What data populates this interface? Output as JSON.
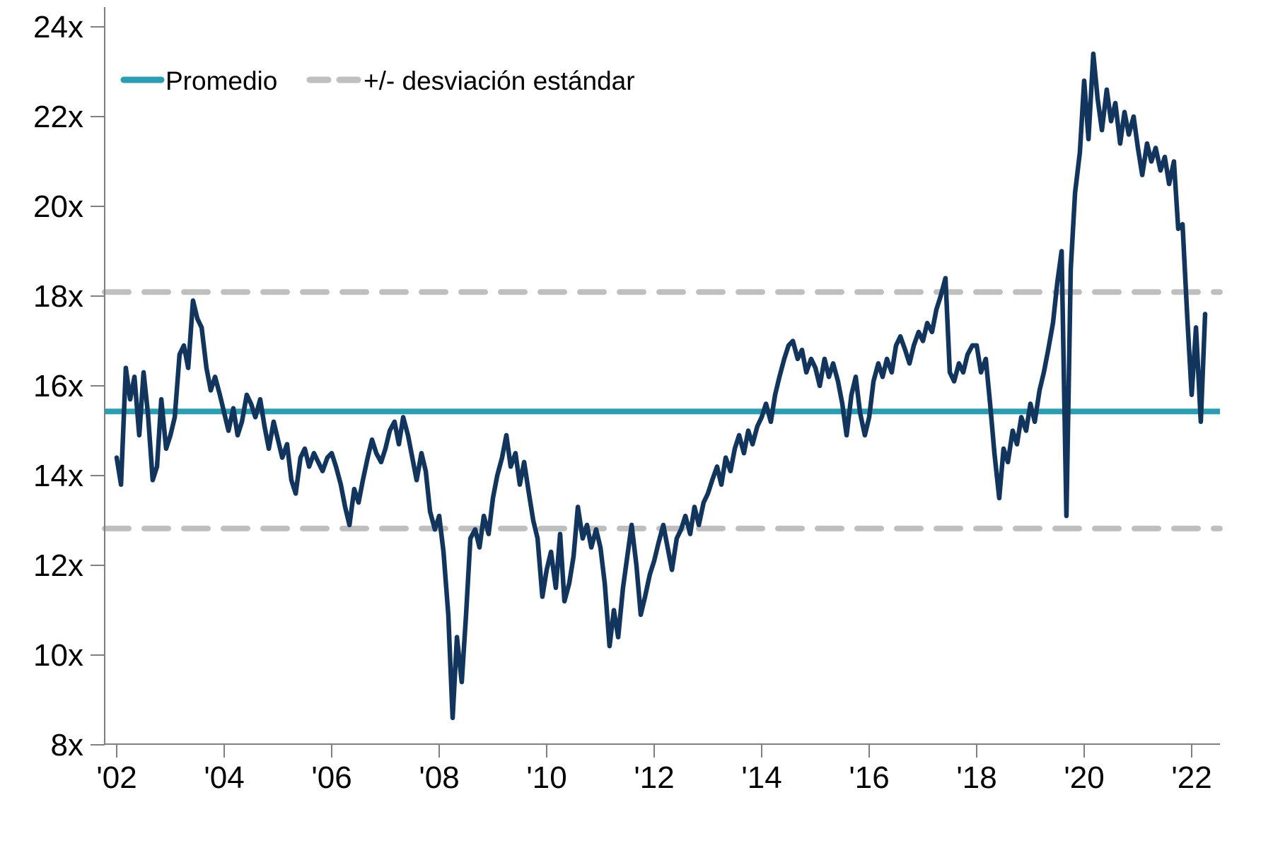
{
  "legend": {
    "mean_label": "Promedio",
    "std_label": "+/- desviación estándar"
  },
  "colors": {
    "series": "#12355E",
    "mean": "#2B9EB3",
    "band": "#BFBFBF",
    "axis": "#808080",
    "text": "#000000"
  },
  "chart_data": {
    "type": "line",
    "title": "",
    "xlabel": "",
    "ylabel": "",
    "grid": false,
    "legend_position": "top-left-inside",
    "ylim": [
      8,
      24
    ],
    "xlim": [
      2001.78,
      2022.53
    ],
    "y_tick_values": [
      8,
      10,
      12,
      14,
      16,
      18,
      20,
      22,
      24
    ],
    "y_tick_labels": [
      "8x",
      "10x",
      "12x",
      "14x",
      "16x",
      "18x",
      "20x",
      "22x",
      "24x"
    ],
    "x_tick_values": [
      2002,
      2004,
      2006,
      2008,
      2010,
      2012,
      2014,
      2016,
      2018,
      2020,
      2022
    ],
    "x_tick_labels": [
      "'02",
      "'04",
      "'06",
      "'08",
      "'10",
      "'12",
      "'14",
      "'16",
      "'18",
      "'20",
      "'22"
    ],
    "mean_value": 15.43,
    "std_upper_value": 18.09,
    "std_lower_value": 12.82,
    "series": [
      {
        "name": "",
        "points": [
          [
            2002.0,
            14.4
          ],
          [
            2002.08,
            13.8
          ],
          [
            2002.17,
            16.4
          ],
          [
            2002.25,
            15.7
          ],
          [
            2002.33,
            16.2
          ],
          [
            2002.42,
            14.9
          ],
          [
            2002.5,
            16.3
          ],
          [
            2002.58,
            15.4
          ],
          [
            2002.67,
            13.9
          ],
          [
            2002.75,
            14.2
          ],
          [
            2002.83,
            15.7
          ],
          [
            2002.92,
            14.6
          ],
          [
            2003.0,
            14.9
          ],
          [
            2003.08,
            15.3
          ],
          [
            2003.17,
            16.7
          ],
          [
            2003.25,
            16.9
          ],
          [
            2003.33,
            16.4
          ],
          [
            2003.42,
            17.9
          ],
          [
            2003.5,
            17.5
          ],
          [
            2003.58,
            17.3
          ],
          [
            2003.67,
            16.4
          ],
          [
            2003.75,
            15.9
          ],
          [
            2003.83,
            16.2
          ],
          [
            2003.92,
            15.8
          ],
          [
            2004.0,
            15.4
          ],
          [
            2004.08,
            15.0
          ],
          [
            2004.17,
            15.5
          ],
          [
            2004.25,
            14.9
          ],
          [
            2004.33,
            15.2
          ],
          [
            2004.42,
            15.8
          ],
          [
            2004.5,
            15.6
          ],
          [
            2004.58,
            15.3
          ],
          [
            2004.67,
            15.7
          ],
          [
            2004.75,
            15.1
          ],
          [
            2004.83,
            14.6
          ],
          [
            2004.92,
            15.2
          ],
          [
            2005.0,
            14.8
          ],
          [
            2005.08,
            14.4
          ],
          [
            2005.17,
            14.7
          ],
          [
            2005.25,
            13.9
          ],
          [
            2005.33,
            13.6
          ],
          [
            2005.42,
            14.4
          ],
          [
            2005.5,
            14.6
          ],
          [
            2005.58,
            14.2
          ],
          [
            2005.67,
            14.5
          ],
          [
            2005.75,
            14.3
          ],
          [
            2005.83,
            14.1
          ],
          [
            2005.92,
            14.4
          ],
          [
            2006.0,
            14.5
          ],
          [
            2006.08,
            14.2
          ],
          [
            2006.17,
            13.8
          ],
          [
            2006.25,
            13.3
          ],
          [
            2006.33,
            12.9
          ],
          [
            2006.42,
            13.7
          ],
          [
            2006.5,
            13.4
          ],
          [
            2006.58,
            13.9
          ],
          [
            2006.67,
            14.4
          ],
          [
            2006.75,
            14.8
          ],
          [
            2006.83,
            14.5
          ],
          [
            2006.92,
            14.3
          ],
          [
            2007.0,
            14.6
          ],
          [
            2007.08,
            15.0
          ],
          [
            2007.17,
            15.2
          ],
          [
            2007.25,
            14.7
          ],
          [
            2007.33,
            15.3
          ],
          [
            2007.42,
            14.9
          ],
          [
            2007.5,
            14.4
          ],
          [
            2007.58,
            13.9
          ],
          [
            2007.67,
            14.5
          ],
          [
            2007.75,
            14.1
          ],
          [
            2007.83,
            13.2
          ],
          [
            2007.92,
            12.8
          ],
          [
            2008.0,
            13.1
          ],
          [
            2008.08,
            12.3
          ],
          [
            2008.17,
            10.9
          ],
          [
            2008.25,
            8.6
          ],
          [
            2008.33,
            10.4
          ],
          [
            2008.42,
            9.4
          ],
          [
            2008.5,
            10.9
          ],
          [
            2008.58,
            12.6
          ],
          [
            2008.67,
            12.8
          ],
          [
            2008.75,
            12.4
          ],
          [
            2008.83,
            13.1
          ],
          [
            2008.92,
            12.7
          ],
          [
            2009.0,
            13.5
          ],
          [
            2009.08,
            14.0
          ],
          [
            2009.17,
            14.4
          ],
          [
            2009.25,
            14.9
          ],
          [
            2009.33,
            14.2
          ],
          [
            2009.42,
            14.5
          ],
          [
            2009.5,
            13.8
          ],
          [
            2009.58,
            14.3
          ],
          [
            2009.67,
            13.6
          ],
          [
            2009.75,
            13.0
          ],
          [
            2009.83,
            12.6
          ],
          [
            2009.92,
            11.3
          ],
          [
            2010.0,
            11.9
          ],
          [
            2010.08,
            12.3
          ],
          [
            2010.17,
            11.5
          ],
          [
            2010.25,
            12.7
          ],
          [
            2010.33,
            11.2
          ],
          [
            2010.42,
            11.6
          ],
          [
            2010.5,
            12.2
          ],
          [
            2010.58,
            13.3
          ],
          [
            2010.67,
            12.6
          ],
          [
            2010.75,
            12.9
          ],
          [
            2010.83,
            12.4
          ],
          [
            2010.92,
            12.8
          ],
          [
            2011.0,
            12.4
          ],
          [
            2011.08,
            11.6
          ],
          [
            2011.17,
            10.2
          ],
          [
            2011.25,
            11.0
          ],
          [
            2011.33,
            10.4
          ],
          [
            2011.42,
            11.5
          ],
          [
            2011.5,
            12.2
          ],
          [
            2011.58,
            12.9
          ],
          [
            2011.67,
            12.0
          ],
          [
            2011.75,
            10.9
          ],
          [
            2011.83,
            11.3
          ],
          [
            2011.92,
            11.8
          ],
          [
            2012.0,
            12.1
          ],
          [
            2012.08,
            12.5
          ],
          [
            2012.17,
            12.9
          ],
          [
            2012.25,
            12.4
          ],
          [
            2012.33,
            11.9
          ],
          [
            2012.42,
            12.6
          ],
          [
            2012.5,
            12.8
          ],
          [
            2012.58,
            13.1
          ],
          [
            2012.67,
            12.7
          ],
          [
            2012.75,
            13.3
          ],
          [
            2012.83,
            12.9
          ],
          [
            2012.92,
            13.4
          ],
          [
            2013.0,
            13.6
          ],
          [
            2013.08,
            13.9
          ],
          [
            2013.17,
            14.2
          ],
          [
            2013.25,
            13.8
          ],
          [
            2013.33,
            14.4
          ],
          [
            2013.42,
            14.1
          ],
          [
            2013.5,
            14.6
          ],
          [
            2013.58,
            14.9
          ],
          [
            2013.67,
            14.5
          ],
          [
            2013.75,
            15.0
          ],
          [
            2013.83,
            14.7
          ],
          [
            2013.92,
            15.1
          ],
          [
            2014.0,
            15.3
          ],
          [
            2014.08,
            15.6
          ],
          [
            2014.17,
            15.2
          ],
          [
            2014.25,
            15.8
          ],
          [
            2014.33,
            16.2
          ],
          [
            2014.42,
            16.6
          ],
          [
            2014.5,
            16.9
          ],
          [
            2014.58,
            17.0
          ],
          [
            2014.67,
            16.6
          ],
          [
            2014.75,
            16.8
          ],
          [
            2014.83,
            16.3
          ],
          [
            2014.92,
            16.6
          ],
          [
            2015.0,
            16.4
          ],
          [
            2015.08,
            16.0
          ],
          [
            2015.17,
            16.6
          ],
          [
            2015.25,
            16.2
          ],
          [
            2015.33,
            16.5
          ],
          [
            2015.42,
            16.1
          ],
          [
            2015.5,
            15.6
          ],
          [
            2015.58,
            14.9
          ],
          [
            2015.67,
            15.8
          ],
          [
            2015.75,
            16.2
          ],
          [
            2015.83,
            15.4
          ],
          [
            2015.92,
            14.9
          ],
          [
            2016.0,
            15.3
          ],
          [
            2016.08,
            16.1
          ],
          [
            2016.17,
            16.5
          ],
          [
            2016.25,
            16.2
          ],
          [
            2016.33,
            16.6
          ],
          [
            2016.42,
            16.3
          ],
          [
            2016.5,
            16.9
          ],
          [
            2016.58,
            17.1
          ],
          [
            2016.67,
            16.8
          ],
          [
            2016.75,
            16.5
          ],
          [
            2016.83,
            16.9
          ],
          [
            2016.92,
            17.2
          ],
          [
            2017.0,
            17.0
          ],
          [
            2017.08,
            17.4
          ],
          [
            2017.17,
            17.2
          ],
          [
            2017.25,
            17.7
          ],
          [
            2017.33,
            18.0
          ],
          [
            2017.42,
            18.4
          ],
          [
            2017.5,
            16.3
          ],
          [
            2017.58,
            16.1
          ],
          [
            2017.67,
            16.5
          ],
          [
            2017.75,
            16.3
          ],
          [
            2017.83,
            16.7
          ],
          [
            2017.92,
            16.9
          ],
          [
            2018.0,
            16.9
          ],
          [
            2018.08,
            16.3
          ],
          [
            2018.17,
            16.6
          ],
          [
            2018.25,
            15.6
          ],
          [
            2018.33,
            14.5
          ],
          [
            2018.42,
            13.5
          ],
          [
            2018.5,
            14.6
          ],
          [
            2018.58,
            14.3
          ],
          [
            2018.67,
            15.0
          ],
          [
            2018.75,
            14.7
          ],
          [
            2018.83,
            15.3
          ],
          [
            2018.92,
            15.0
          ],
          [
            2019.0,
            15.6
          ],
          [
            2019.08,
            15.2
          ],
          [
            2019.17,
            15.9
          ],
          [
            2019.25,
            16.3
          ],
          [
            2019.33,
            16.8
          ],
          [
            2019.42,
            17.4
          ],
          [
            2019.5,
            18.3
          ],
          [
            2019.58,
            19.0
          ],
          [
            2019.67,
            13.1
          ],
          [
            2019.75,
            18.6
          ],
          [
            2019.83,
            20.3
          ],
          [
            2019.92,
            21.2
          ],
          [
            2020.0,
            22.8
          ],
          [
            2020.08,
            21.5
          ],
          [
            2020.17,
            23.4
          ],
          [
            2020.25,
            22.4
          ],
          [
            2020.33,
            21.7
          ],
          [
            2020.42,
            22.6
          ],
          [
            2020.5,
            21.9
          ],
          [
            2020.58,
            22.3
          ],
          [
            2020.67,
            21.4
          ],
          [
            2020.75,
            22.1
          ],
          [
            2020.83,
            21.6
          ],
          [
            2020.92,
            22.0
          ],
          [
            2021.0,
            21.3
          ],
          [
            2021.08,
            20.7
          ],
          [
            2021.17,
            21.4
          ],
          [
            2021.25,
            21.0
          ],
          [
            2021.33,
            21.3
          ],
          [
            2021.42,
            20.8
          ],
          [
            2021.5,
            21.1
          ],
          [
            2021.58,
            20.5
          ],
          [
            2021.67,
            21.0
          ],
          [
            2021.75,
            19.5
          ],
          [
            2021.83,
            19.6
          ],
          [
            2021.92,
            17.5
          ],
          [
            2022.0,
            15.8
          ],
          [
            2022.08,
            17.3
          ],
          [
            2022.17,
            15.2
          ],
          [
            2022.25,
            17.6
          ]
        ]
      }
    ]
  }
}
